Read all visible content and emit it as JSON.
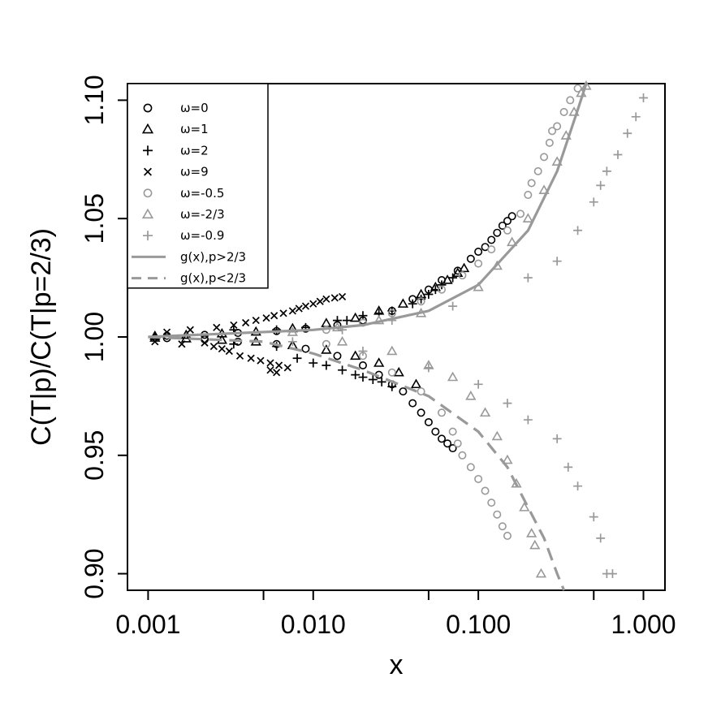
{
  "chart_data": {
    "type": "scatter",
    "title": "",
    "xlabel": "x",
    "ylabel": "C(T|p)/C(T|p=2/3)",
    "xscale": "log",
    "xlim": [
      0.00075,
      1.35
    ],
    "ylim": [
      0.893,
      1.107
    ],
    "xticks": [
      0.001,
      0.01,
      0.1,
      1
    ],
    "xtick_labels": [
      "0.001",
      "0.010",
      "0.100",
      "1.000"
    ],
    "yticks": [
      0.9,
      0.95,
      1.0,
      1.05,
      1.1
    ],
    "ytick_labels": [
      "0.90",
      "0.95",
      "1.00",
      "1.05",
      "1.10"
    ],
    "grid": false,
    "legend_position": "top-left",
    "series": [
      {
        "name": "ω=0",
        "marker": "circle",
        "color": "#000000",
        "points": [
          [
            0.0013,
            1.0005
          ],
          [
            0.0022,
            1.0009
          ],
          [
            0.0035,
            1.0017
          ],
          [
            0.006,
            1.0025
          ],
          [
            0.009,
            1.0035
          ],
          [
            0.014,
            1.005
          ],
          [
            0.02,
            1.007
          ],
          [
            0.03,
            1.011
          ],
          [
            0.04,
            1.016
          ],
          [
            0.05,
            1.02
          ],
          [
            0.06,
            1.024
          ],
          [
            0.075,
            1.028
          ],
          [
            0.09,
            1.033
          ],
          [
            0.1,
            1.036
          ],
          [
            0.11,
            1.038
          ],
          [
            0.12,
            1.041
          ],
          [
            0.13,
            1.044
          ],
          [
            0.14,
            1.047
          ],
          [
            0.15,
            1.049
          ],
          [
            0.16,
            1.051
          ],
          [
            0.0013,
            0.9995
          ],
          [
            0.0022,
            0.999
          ],
          [
            0.0035,
            0.998
          ],
          [
            0.006,
            0.997
          ],
          [
            0.009,
            0.995
          ],
          [
            0.014,
            0.992
          ],
          [
            0.02,
            0.988
          ],
          [
            0.025,
            0.984
          ],
          [
            0.03,
            0.98
          ],
          [
            0.035,
            0.977
          ],
          [
            0.04,
            0.972
          ],
          [
            0.045,
            0.968
          ],
          [
            0.05,
            0.964
          ],
          [
            0.055,
            0.96
          ],
          [
            0.06,
            0.957
          ],
          [
            0.065,
            0.955
          ],
          [
            0.07,
            0.953
          ]
        ]
      },
      {
        "name": "ω=1",
        "marker": "triangle",
        "color": "#000000",
        "points": [
          [
            0.0011,
            1.0004
          ],
          [
            0.0017,
            1.0008
          ],
          [
            0.0028,
            1.0014
          ],
          [
            0.0045,
            1.0022
          ],
          [
            0.0075,
            1.0036
          ],
          [
            0.012,
            1.0058
          ],
          [
            0.018,
            1.008
          ],
          [
            0.025,
            1.011
          ],
          [
            0.035,
            1.014
          ],
          [
            0.045,
            1.018
          ],
          [
            0.055,
            1.021
          ],
          [
            0.065,
            1.024
          ],
          [
            0.075,
            1.027
          ],
          [
            0.082,
            1.029
          ],
          [
            0.0011,
            0.9996
          ],
          [
            0.0017,
            0.9993
          ],
          [
            0.0028,
            0.9987
          ],
          [
            0.0045,
            0.998
          ],
          [
            0.0075,
            0.9965
          ],
          [
            0.012,
            0.9945
          ],
          [
            0.018,
            0.992
          ],
          [
            0.025,
            0.989
          ],
          [
            0.033,
            0.985
          ],
          [
            0.042,
            0.98
          ]
        ]
      },
      {
        "name": "ω=2",
        "marker": "plus",
        "color": "#000000",
        "points": [
          [
            0.0033,
            1.003
          ],
          [
            0.006,
            1.003
          ],
          [
            0.009,
            1.004
          ],
          [
            0.014,
            1.007
          ],
          [
            0.016,
            1.007
          ],
          [
            0.02,
            1.009
          ],
          [
            0.025,
            1.01
          ],
          [
            0.03,
            1.011
          ],
          [
            0.04,
            1.014
          ],
          [
            0.045,
            1.016
          ],
          [
            0.05,
            1.018
          ],
          [
            0.055,
            1.02
          ],
          [
            0.06,
            1.022
          ],
          [
            0.07,
            1.025
          ],
          [
            0.0033,
            0.997
          ],
          [
            0.006,
            0.996
          ],
          [
            0.008,
            0.991
          ],
          [
            0.01,
            0.989
          ],
          [
            0.012,
            0.988
          ],
          [
            0.015,
            0.986
          ],
          [
            0.018,
            0.984
          ],
          [
            0.02,
            0.983
          ],
          [
            0.023,
            0.982
          ],
          [
            0.026,
            0.981
          ],
          [
            0.03,
            0.979
          ]
        ]
      },
      {
        "name": "ω=9",
        "marker": "cross",
        "color": "#000000",
        "points": [
          [
            0.0011,
            0.998
          ],
          [
            0.0013,
            1.002
          ],
          [
            0.0016,
            0.997
          ],
          [
            0.0018,
            1.003
          ],
          [
            0.0022,
            0.9975
          ],
          [
            0.0026,
            1.004
          ],
          [
            0.0031,
            0.994
          ],
          [
            0.0033,
            1.005
          ],
          [
            0.0036,
            0.992
          ],
          [
            0.0039,
            1.006
          ],
          [
            0.0042,
            0.991
          ],
          [
            0.0045,
            1.007
          ],
          [
            0.0048,
            0.99
          ],
          [
            0.0052,
            1.008
          ],
          [
            0.0055,
            0.989
          ],
          [
            0.0058,
            1.009
          ],
          [
            0.0062,
            0.988
          ],
          [
            0.0066,
            1.01
          ],
          [
            0.007,
            0.987
          ],
          [
            0.0075,
            1.011
          ],
          [
            0.0082,
            1.012
          ],
          [
            0.009,
            1.013
          ],
          [
            0.01,
            1.014
          ],
          [
            0.011,
            1.015
          ],
          [
            0.012,
            1.016
          ],
          [
            0.0135,
            1.0165
          ],
          [
            0.015,
            1.017
          ],
          [
            0.0055,
            0.986
          ],
          [
            0.006,
            0.985
          ],
          [
            0.0025,
            0.996
          ],
          [
            0.0028,
            0.995
          ]
        ]
      },
      {
        "name": "ω=-0.5",
        "marker": "circle",
        "color": "#999999",
        "points": [
          [
            0.012,
            1.003
          ],
          [
            0.02,
            1.006
          ],
          [
            0.03,
            1.01
          ],
          [
            0.045,
            1.015
          ],
          [
            0.06,
            1.02
          ],
          [
            0.08,
            1.026
          ],
          [
            0.1,
            1.031
          ],
          [
            0.12,
            1.037
          ],
          [
            0.15,
            1.045
          ],
          [
            0.18,
            1.052
          ],
          [
            0.2,
            1.06
          ],
          [
            0.21,
            1.065
          ],
          [
            0.23,
            1.07
          ],
          [
            0.25,
            1.076
          ],
          [
            0.27,
            1.082
          ],
          [
            0.28,
            1.087
          ],
          [
            0.3,
            1.089
          ],
          [
            0.33,
            1.095
          ],
          [
            0.36,
            1.1
          ],
          [
            0.4,
            1.105
          ],
          [
            0.012,
            0.997
          ],
          [
            0.02,
            0.992
          ],
          [
            0.03,
            0.985
          ],
          [
            0.045,
            0.977
          ],
          [
            0.06,
            0.968
          ],
          [
            0.07,
            0.96
          ],
          [
            0.075,
            0.955
          ],
          [
            0.08,
            0.95
          ],
          [
            0.09,
            0.945
          ],
          [
            0.1,
            0.94
          ],
          [
            0.11,
            0.935
          ],
          [
            0.12,
            0.93
          ],
          [
            0.13,
            0.925
          ],
          [
            0.14,
            0.92
          ],
          [
            0.15,
            0.916
          ]
        ]
      },
      {
        "name": "ω=-2/3",
        "marker": "triangle",
        "color": "#999999",
        "points": [
          [
            0.0075,
            1.002
          ],
          [
            0.014,
            1.004
          ],
          [
            0.025,
            1.007
          ],
          [
            0.045,
            1.01
          ],
          [
            0.1,
            1.021
          ],
          [
            0.13,
            1.03
          ],
          [
            0.16,
            1.04
          ],
          [
            0.2,
            1.05
          ],
          [
            0.25,
            1.062
          ],
          [
            0.3,
            1.074
          ],
          [
            0.34,
            1.085
          ],
          [
            0.38,
            1.095
          ],
          [
            0.42,
            1.103
          ],
          [
            0.45,
            1.106
          ],
          [
            0.015,
            0.998
          ],
          [
            0.03,
            0.994
          ],
          [
            0.05,
            0.988
          ],
          [
            0.07,
            0.983
          ],
          [
            0.09,
            0.975
          ],
          [
            0.11,
            0.968
          ],
          [
            0.13,
            0.958
          ],
          [
            0.15,
            0.948
          ],
          [
            0.17,
            0.938
          ],
          [
            0.19,
            0.928
          ],
          [
            0.21,
            0.917
          ],
          [
            0.22,
            0.912
          ],
          [
            0.24,
            0.9
          ]
        ]
      },
      {
        "name": "ω=-0.9",
        "marker": "plus",
        "color": "#999999",
        "points": [
          [
            0.0006,
            1.0
          ],
          [
            0.015,
            1.003
          ],
          [
            0.03,
            1.007
          ],
          [
            0.07,
            1.013
          ],
          [
            0.2,
            1.025
          ],
          [
            0.3,
            1.032
          ],
          [
            0.4,
            1.045
          ],
          [
            0.5,
            1.057
          ],
          [
            0.55,
            1.064
          ],
          [
            0.6,
            1.07
          ],
          [
            0.7,
            1.077
          ],
          [
            0.8,
            1.086
          ],
          [
            0.9,
            1.093
          ],
          [
            1.0,
            1.101
          ],
          [
            0.0075,
            0.998
          ],
          [
            0.02,
            0.994
          ],
          [
            0.05,
            0.987
          ],
          [
            0.1,
            0.98
          ],
          [
            0.15,
            0.972
          ],
          [
            0.2,
            0.965
          ],
          [
            0.3,
            0.957
          ],
          [
            0.35,
            0.945
          ],
          [
            0.4,
            0.937
          ],
          [
            0.5,
            0.924
          ],
          [
            0.55,
            0.915
          ],
          [
            0.6,
            0.9
          ],
          [
            0.65,
            0.9
          ]
        ]
      },
      {
        "name": "g(x),p>2/3",
        "marker": "line",
        "color": "#999999",
        "dash": "solid",
        "points": [
          [
            0.001,
            1.0
          ],
          [
            0.01,
            1.003
          ],
          [
            0.02,
            1.005
          ],
          [
            0.05,
            1.011
          ],
          [
            0.1,
            1.022
          ],
          [
            0.2,
            1.045
          ],
          [
            0.3,
            1.07
          ],
          [
            0.4,
            1.096
          ],
          [
            0.45,
            1.107
          ]
        ]
      },
      {
        "name": "g(x),p<2/3",
        "marker": "line",
        "color": "#999999",
        "dash": "dashed",
        "points": [
          [
            0.001,
            1.0
          ],
          [
            0.005,
            0.998
          ],
          [
            0.01,
            0.993
          ],
          [
            0.02,
            0.986
          ],
          [
            0.05,
            0.975
          ],
          [
            0.1,
            0.96
          ],
          [
            0.15,
            0.945
          ],
          [
            0.2,
            0.928
          ],
          [
            0.25,
            0.915
          ],
          [
            0.3,
            0.9
          ],
          [
            0.33,
            0.893
          ]
        ]
      }
    ]
  }
}
